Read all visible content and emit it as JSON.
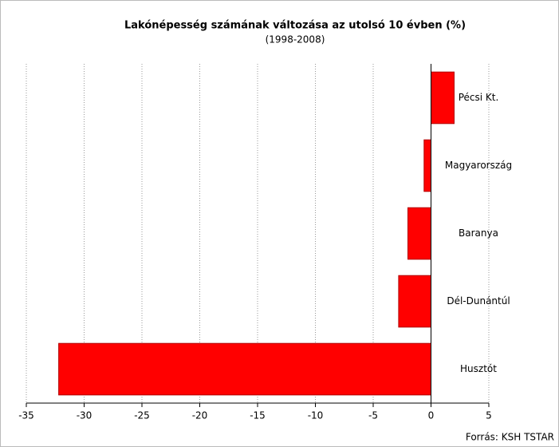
{
  "chart_data": {
    "type": "barh",
    "title": "Lakónépesség számának változása az utolsó 10 évben (%)",
    "subtitle": "(1998-2008)",
    "source": "Forrás: KSH TSTAR",
    "categories": [
      "Pécsi Kt.",
      "Magyarország",
      "Baranya",
      "Dél-Dunántúl",
      "Husztót"
    ],
    "values": [
      2.0,
      -0.6,
      -2.0,
      -2.8,
      -32.2
    ],
    "color": "#ff0000",
    "xlim": [
      -35,
      5
    ],
    "xticks": [
      -35,
      -30,
      -25,
      -20,
      -15,
      -10,
      -5,
      0,
      5
    ],
    "grid": true
  }
}
